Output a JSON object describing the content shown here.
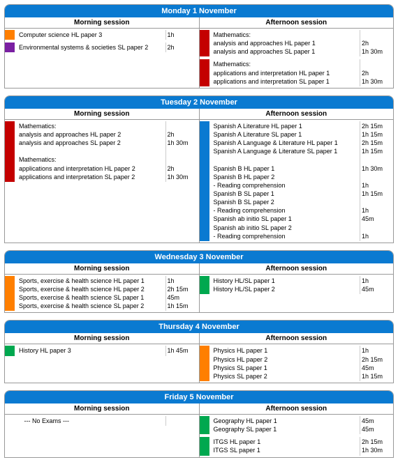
{
  "colors": {
    "header_bg": "#0a7ad1",
    "header_fg": "#ffffff",
    "border": "#999999",
    "subborder": "#cccccc",
    "orange": "#ff7f00",
    "purple": "#7a1fa2",
    "red": "#c40000",
    "blue": "#0a7ad1",
    "green": "#00a84f"
  },
  "session_labels": {
    "morning": "Morning session",
    "afternoon": "Afternoon session"
  },
  "days": [
    {
      "title": "Monday 1 November",
      "morning": [
        {
          "color": "orange",
          "lines": [
            "Computer science HL paper 3"
          ],
          "durs": [
            "1h"
          ]
        },
        {
          "color": "purple",
          "lines": [
            "Environmental systems & societies SL paper 2"
          ],
          "durs": [
            "2h"
          ]
        }
      ],
      "afternoon": [
        {
          "color": "red",
          "lines": [
            "Mathematics:",
            "analysis and approaches HL paper 1",
            "analysis and approaches SL paper 1"
          ],
          "durs": [
            "",
            "2h",
            "1h 30m"
          ]
        },
        {
          "color": "red",
          "lines": [
            "Mathematics:",
            "applications and interpretation HL paper 1",
            "applications and interpretation SL paper 1"
          ],
          "durs": [
            "",
            "2h",
            "1h 30m"
          ]
        }
      ]
    },
    {
      "title": "Tuesday 2 November",
      "morning": [
        {
          "color": "red",
          "lines": [
            "Mathematics:",
            "analysis and approaches HL paper 2",
            "analysis and approaches SL paper 2",
            "",
            "Mathematics:",
            "applications and interpretation HL paper 2",
            "applications and interpretation SL paper 2"
          ],
          "durs": [
            "",
            "2h",
            "1h 30m",
            "",
            "",
            "2h",
            "1h 30m"
          ]
        }
      ],
      "afternoon": [
        {
          "color": "blue",
          "lines": [
            "Spanish A Literature HL paper 1",
            "Spanish A Literature SL paper 1",
            "Spanish A Language & Literature HL paper 1",
            "Spanish A Language & Literature SL paper 1",
            "",
            "Spanish B HL paper 1",
            "Spanish B HL paper 2",
            "- Reading comprehension",
            "Spanish B SL paper 1",
            "Spanish B SL paper 2",
            "- Reading comprehension",
            "Spanish ab initio SL paper 1",
            "Spanish ab initio SL paper 2",
            "- Reading comprehension"
          ],
          "durs": [
            "2h 15m",
            "1h 15m",
            "2h 15m",
            "1h 15m",
            "",
            "1h 30m",
            "",
            "1h",
            "1h 15m",
            "",
            "1h",
            "45m",
            "",
            "1h"
          ]
        }
      ]
    },
    {
      "title": "Wednesday 3 November",
      "morning": [
        {
          "color": "orange",
          "lines": [
            "Sports, exercise & health science HL paper 1",
            "Sports, exercise & health science HL paper 2",
            "Sports, exercise & health science SL paper 1",
            "Sports, exercise & health science SL paper 2"
          ],
          "durs": [
            "1h",
            "2h 15m",
            "45m",
            "1h 15m"
          ]
        }
      ],
      "afternoon": [
        {
          "color": "green",
          "lines": [
            "History HL/SL paper 1",
            "History HL/SL paper 2"
          ],
          "durs": [
            "1h",
            "45m"
          ]
        }
      ]
    },
    {
      "title": "Thursday 4 November",
      "morning": [
        {
          "color": "green",
          "lines": [
            "History HL paper 3"
          ],
          "durs": [
            "1h 45m"
          ]
        }
      ],
      "afternoon": [
        {
          "color": "orange",
          "lines": [
            "Physics HL paper 1",
            "Physics HL paper 2",
            "Physics SL paper 1",
            "Physics SL paper 2"
          ],
          "durs": [
            "1h",
            "2h 15m",
            "45m",
            "1h 15m"
          ]
        }
      ]
    },
    {
      "title": "Friday 5 November",
      "morning": [
        {
          "color": "",
          "lines": [
            "   --- No Exams ---"
          ],
          "durs": [
            ""
          ]
        }
      ],
      "afternoon": [
        {
          "color": "green",
          "lines": [
            "Geography HL paper 1",
            "Geography SL paper 1"
          ],
          "durs": [
            "45m",
            "45m"
          ]
        },
        {
          "color": "green",
          "lines": [
            "ITGS HL paper 1",
            "ITGS SL paper 1"
          ],
          "durs": [
            "2h 15m",
            "1h 30m"
          ]
        }
      ]
    }
  ]
}
